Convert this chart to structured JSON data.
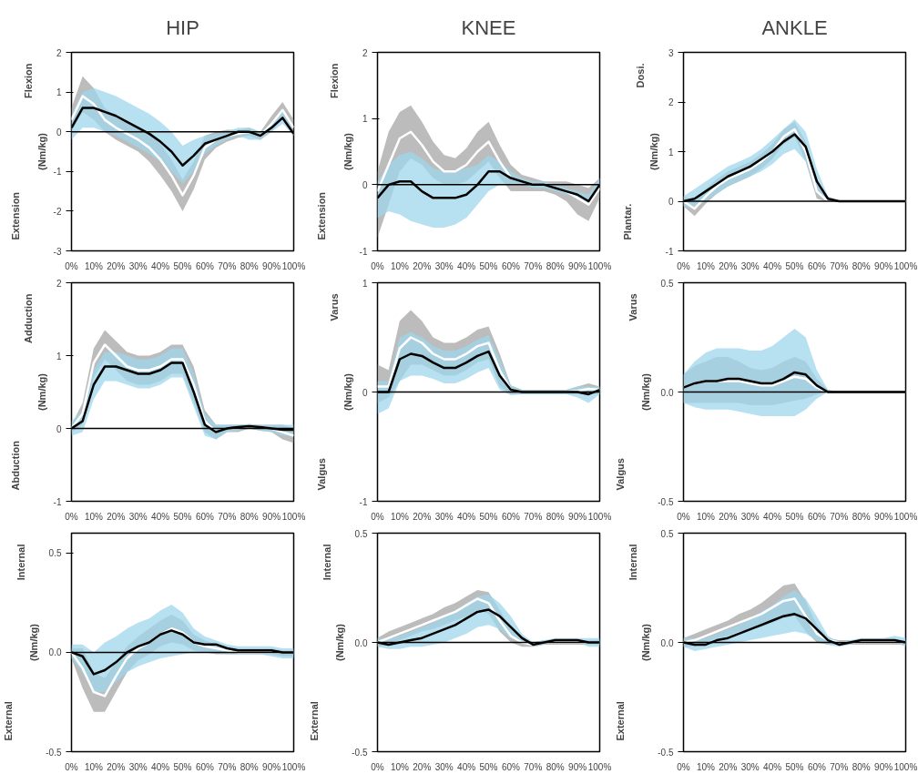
{
  "chart_data": [
    {
      "type": "line",
      "title": "HIP",
      "ylabel": "(Nm/kg)",
      "annotations": [
        "Flexion",
        "Extension"
      ],
      "x": [
        0,
        5,
        10,
        15,
        20,
        25,
        30,
        35,
        40,
        45,
        50,
        55,
        60,
        65,
        70,
        75,
        80,
        85,
        90,
        95,
        100
      ],
      "xlim": [
        0,
        100
      ],
      "xticks": [
        {
          "value": 0,
          "label": "0%"
        },
        {
          "value": 10,
          "label": "10%"
        },
        {
          "value": 20,
          "label": "20%"
        },
        {
          "value": 30,
          "label": "30%"
        },
        {
          "value": 40,
          "label": "40%"
        },
        {
          "value": 50,
          "label": "50%"
        },
        {
          "value": 60,
          "label": "60%"
        },
        {
          "value": 70,
          "label": "70%"
        },
        {
          "value": 80,
          "label": "80%"
        },
        {
          "value": 90,
          "label": "90%"
        },
        {
          "value": 100,
          "label": "100%"
        }
      ],
      "ylim": [
        -3,
        2
      ],
      "yticks": [
        -3,
        -2,
        -1,
        0,
        1,
        2
      ],
      "grid": false,
      "ref_lines": [
        {
          "axis": "y",
          "value": 0
        }
      ],
      "series": [
        {
          "color": "#ffffff",
          "values": [
            0.3,
            0.9,
            0.7,
            0.3,
            0.1,
            -0.05,
            -0.2,
            -0.4,
            -0.7,
            -1.1,
            -1.6,
            -1.1,
            -0.4,
            -0.2,
            -0.1,
            -0.05,
            0,
            -0.1,
            0.2,
            0.55,
            0.1
          ],
          "lower": [
            0,
            0.5,
            0.3,
            0,
            -0.2,
            -0.35,
            -0.5,
            -0.75,
            -1.1,
            -1.5,
            -2,
            -1.45,
            -0.7,
            -0.4,
            -0.25,
            -0.15,
            -0.1,
            -0.2,
            0,
            0.35,
            -0.1
          ],
          "upper": [
            0.6,
            1.4,
            1.1,
            0.6,
            0.4,
            0.25,
            0.1,
            -0.05,
            -0.3,
            -0.7,
            -1.2,
            -0.75,
            -0.1,
            0,
            0.05,
            0.05,
            0.1,
            0,
            0.4,
            0.75,
            0.3
          ]
        },
        {
          "color": "#000000",
          "values": [
            0.1,
            0.6,
            0.6,
            0.5,
            0.4,
            0.25,
            0.1,
            -0.05,
            -0.25,
            -0.5,
            -0.85,
            -0.6,
            -0.3,
            -0.2,
            -0.1,
            0,
            0,
            -0.1,
            0.1,
            0.35,
            -0.05
          ],
          "lower": [
            -0.2,
            0.1,
            0.1,
            0,
            -0.1,
            -0.25,
            -0.4,
            -0.55,
            -0.75,
            -1.0,
            -1.3,
            -1.0,
            -0.55,
            -0.35,
            -0.2,
            -0.1,
            -0.2,
            -0.2,
            0,
            0.2,
            -0.1
          ],
          "upper": [
            0.4,
            1.0,
            1.1,
            1.0,
            0.9,
            0.75,
            0.6,
            0.45,
            0.25,
            0,
            -0.35,
            -0.2,
            -0.1,
            -0.05,
            0,
            0.1,
            0.1,
            0,
            0.2,
            0.5,
            0
          ]
        }
      ]
    },
    {
      "type": "line",
      "title": "KNEE",
      "ylabel": "(Nm/kg)",
      "annotations": [
        "Flexion",
        "Extension"
      ],
      "x": [
        0,
        5,
        10,
        15,
        20,
        25,
        30,
        35,
        40,
        45,
        50,
        55,
        60,
        65,
        70,
        75,
        80,
        85,
        90,
        95,
        100
      ],
      "xlim": [
        0,
        100
      ],
      "xticks": [
        {
          "value": 0,
          "label": "0%"
        },
        {
          "value": 10,
          "label": "10%"
        },
        {
          "value": 20,
          "label": "20%"
        },
        {
          "value": 30,
          "label": "30%"
        },
        {
          "value": 40,
          "label": "40%"
        },
        {
          "value": 50,
          "label": "50%"
        },
        {
          "value": 60,
          "label": "60%"
        },
        {
          "value": 70,
          "label": "70%"
        },
        {
          "value": 80,
          "label": "80%"
        },
        {
          "value": 90,
          "label": "90%"
        },
        {
          "value": 100,
          "label": "100%"
        }
      ],
      "ylim": [
        -1,
        2
      ],
      "yticks": [
        -1,
        0,
        1,
        2
      ],
      "grid": false,
      "ref_lines": [
        {
          "axis": "y",
          "value": 0
        }
      ],
      "series": [
        {
          "color": "#ffffff",
          "values": [
            -0.1,
            0.3,
            0.7,
            0.8,
            0.6,
            0.35,
            0.2,
            0.2,
            0.3,
            0.5,
            0.65,
            0.35,
            0.1,
            0.05,
            0,
            0,
            -0.05,
            -0.1,
            -0.2,
            -0.3,
            -0.05
          ],
          "lower": [
            -0.8,
            -0.3,
            0.2,
            0.4,
            0.3,
            0.1,
            0,
            0,
            0.05,
            0.2,
            0.35,
            0.1,
            -0.1,
            -0.1,
            -0.1,
            -0.1,
            -0.15,
            -0.25,
            -0.45,
            -0.55,
            -0.2
          ],
          "upper": [
            0.2,
            0.8,
            1.1,
            1.2,
            0.95,
            0.65,
            0.45,
            0.4,
            0.55,
            0.8,
            0.95,
            0.6,
            0.3,
            0.15,
            0.1,
            0.05,
            0.05,
            0.05,
            0,
            -0.05,
            0.1
          ]
        },
        {
          "color": "#000000",
          "values": [
            -0.2,
            0,
            0.05,
            0.05,
            -0.1,
            -0.2,
            -0.2,
            -0.2,
            -0.15,
            0,
            0.2,
            0.2,
            0.1,
            0.05,
            0,
            0,
            -0.05,
            -0.1,
            -0.15,
            -0.25,
            0
          ],
          "lower": [
            -0.5,
            -0.4,
            -0.45,
            -0.55,
            -0.6,
            -0.65,
            -0.65,
            -0.6,
            -0.5,
            -0.3,
            -0.1,
            0,
            0,
            0,
            -0.05,
            -0.05,
            -0.1,
            -0.15,
            -0.2,
            -0.3,
            -0.1
          ],
          "upper": [
            0.05,
            0.3,
            0.45,
            0.5,
            0.4,
            0.25,
            0.2,
            0.2,
            0.25,
            0.3,
            0.45,
            0.35,
            0.2,
            0.1,
            0.05,
            0.05,
            0,
            -0.05,
            -0.1,
            -0.15,
            0.1
          ]
        }
      ]
    },
    {
      "type": "line",
      "title": "ANKLE",
      "ylabel": "(Nm/kg)",
      "annotations": [
        "Dosi.",
        "Plantar."
      ],
      "x": [
        0,
        5,
        10,
        15,
        20,
        25,
        30,
        35,
        40,
        45,
        50,
        55,
        60,
        65,
        70,
        75,
        80,
        85,
        90,
        95,
        100
      ],
      "xlim": [
        0,
        100
      ],
      "xticks": [
        {
          "value": 0,
          "label": "0%"
        },
        {
          "value": 10,
          "label": "10%"
        },
        {
          "value": 20,
          "label": "20%"
        },
        {
          "value": 30,
          "label": "30%"
        },
        {
          "value": 40,
          "label": "40%"
        },
        {
          "value": 50,
          "label": "50%"
        },
        {
          "value": 60,
          "label": "60%"
        },
        {
          "value": 70,
          "label": "70%"
        },
        {
          "value": 80,
          "label": "80%"
        },
        {
          "value": 90,
          "label": "90%"
        },
        {
          "value": 100,
          "label": "100%"
        }
      ],
      "ylim": [
        -1,
        3
      ],
      "yticks": [
        -1,
        0,
        1,
        2,
        3
      ],
      "grid": false,
      "ref_lines": [
        {
          "axis": "y",
          "value": 0
        }
      ],
      "series": [
        {
          "color": "#ffffff",
          "values": [
            0,
            -0.15,
            0.1,
            0.3,
            0.45,
            0.55,
            0.65,
            0.8,
            1.0,
            1.3,
            1.45,
            1.0,
            0.2,
            0,
            0,
            0,
            0,
            0,
            0,
            0,
            0
          ],
          "lower": [
            -0.1,
            -0.3,
            -0.05,
            0.15,
            0.3,
            0.4,
            0.5,
            0.65,
            0.85,
            1.15,
            1.3,
            0.8,
            0.05,
            -0.02,
            -0.02,
            -0.02,
            -0.02,
            -0.02,
            -0.02,
            -0.02,
            -0.02
          ],
          "upper": [
            0.1,
            0,
            0.25,
            0.45,
            0.6,
            0.7,
            0.8,
            0.95,
            1.15,
            1.45,
            1.6,
            1.2,
            0.35,
            0.02,
            0.02,
            0.02,
            0.02,
            0.02,
            0.02,
            0.02,
            0.02
          ]
        },
        {
          "color": "#000000",
          "values": [
            0,
            0.05,
            0.2,
            0.35,
            0.5,
            0.6,
            0.7,
            0.85,
            1.0,
            1.2,
            1.35,
            1.1,
            0.4,
            0.05,
            0,
            0,
            0,
            0,
            0,
            0,
            0
          ],
          "lower": [
            -0.1,
            -0.15,
            0,
            0.15,
            0.3,
            0.4,
            0.5,
            0.6,
            0.75,
            0.95,
            1.05,
            0.8,
            0.15,
            0,
            -0.02,
            -0.02,
            -0.02,
            -0.02,
            -0.02,
            -0.02,
            -0.02
          ],
          "upper": [
            0.1,
            0.25,
            0.4,
            0.55,
            0.7,
            0.8,
            0.9,
            1.05,
            1.25,
            1.45,
            1.65,
            1.4,
            0.65,
            0.1,
            0.02,
            0.02,
            0.02,
            0.02,
            0.02,
            0.02,
            0.02
          ]
        }
      ]
    },
    {
      "type": "line",
      "ylabel": "(Nm/kg)",
      "annotations": [
        "Adduction",
        "Abduction"
      ],
      "x": [
        0,
        5,
        10,
        15,
        20,
        25,
        30,
        35,
        40,
        45,
        50,
        55,
        60,
        65,
        70,
        75,
        80,
        85,
        90,
        95,
        100
      ],
      "xlim": [
        0,
        100
      ],
      "xticks": [
        {
          "value": 0,
          "label": "0%"
        },
        {
          "value": 10,
          "label": "10%"
        },
        {
          "value": 20,
          "label": "20%"
        },
        {
          "value": 30,
          "label": "30%"
        },
        {
          "value": 40,
          "label": "40%"
        },
        {
          "value": 50,
          "label": "50%"
        },
        {
          "value": 60,
          "label": "60%"
        },
        {
          "value": 70,
          "label": "70%"
        },
        {
          "value": 80,
          "label": "80%"
        },
        {
          "value": 90,
          "label": "90%"
        },
        {
          "value": 100,
          "label": "100%"
        }
      ],
      "ylim": [
        -1,
        2
      ],
      "yticks": [
        -1,
        0,
        1,
        2
      ],
      "grid": false,
      "ref_lines": [
        {
          "axis": "y",
          "value": 0
        }
      ],
      "series": [
        {
          "color": "#ffffff",
          "values": [
            0,
            0.2,
            0.9,
            1.15,
            1.0,
            0.85,
            0.8,
            0.8,
            0.85,
            0.95,
            0.95,
            0.6,
            0.1,
            -0.05,
            0,
            0,
            0.03,
            0.02,
            0,
            -0.05,
            -0.1
          ],
          "lower": [
            -0.05,
            0.05,
            0.7,
            0.95,
            0.8,
            0.65,
            0.6,
            0.6,
            0.65,
            0.75,
            0.75,
            0.35,
            -0.05,
            -0.15,
            -0.05,
            -0.05,
            0,
            -0.03,
            -0.05,
            -0.15,
            -0.2
          ],
          "upper": [
            0.05,
            0.35,
            1.1,
            1.35,
            1.2,
            1.05,
            1.0,
            1.0,
            1.05,
            1.15,
            1.15,
            0.85,
            0.25,
            0.05,
            0.05,
            0.05,
            0.06,
            0.05,
            0.05,
            0.05,
            0
          ]
        },
        {
          "color": "#000000",
          "values": [
            0,
            0.1,
            0.6,
            0.85,
            0.85,
            0.8,
            0.75,
            0.75,
            0.8,
            0.9,
            0.9,
            0.5,
            0.05,
            -0.05,
            0,
            0.02,
            0.03,
            0.02,
            0,
            -0.02,
            -0.02
          ],
          "lower": [
            -0.1,
            -0.05,
            0.4,
            0.65,
            0.65,
            0.6,
            0.55,
            0.55,
            0.6,
            0.7,
            0.7,
            0.3,
            -0.1,
            -0.15,
            -0.05,
            -0.03,
            0,
            -0.03,
            -0.05,
            -0.1,
            -0.1
          ],
          "upper": [
            0.1,
            0.25,
            0.8,
            1.05,
            1.05,
            1.0,
            0.95,
            0.95,
            1.0,
            1.1,
            1.1,
            0.75,
            0.2,
            0.05,
            0.05,
            0.05,
            0.06,
            0.05,
            0.05,
            0.05,
            0.05
          ]
        }
      ]
    },
    {
      "type": "line",
      "ylabel": "(Nm/kg)",
      "annotations": [
        "Varus",
        "Valgus"
      ],
      "x": [
        0,
        5,
        10,
        15,
        20,
        25,
        30,
        35,
        40,
        45,
        50,
        55,
        60,
        65,
        70,
        75,
        80,
        85,
        90,
        95,
        100
      ],
      "xlim": [
        0,
        100
      ],
      "xticks": [
        {
          "value": 0,
          "label": "0%"
        },
        {
          "value": 10,
          "label": "10%"
        },
        {
          "value": 20,
          "label": "20%"
        },
        {
          "value": 30,
          "label": "30%"
        },
        {
          "value": 40,
          "label": "40%"
        },
        {
          "value": 50,
          "label": "50%"
        },
        {
          "value": 60,
          "label": "60%"
        },
        {
          "value": 70,
          "label": "70%"
        },
        {
          "value": 80,
          "label": "80%"
        },
        {
          "value": 90,
          "label": "90%"
        },
        {
          "value": 100,
          "label": "100%"
        }
      ],
      "ylim": [
        -1,
        1
      ],
      "yticks": [
        -1,
        0,
        1
      ],
      "grid": false,
      "ref_lines": [
        {
          "axis": "y",
          "value": 0
        }
      ],
      "series": [
        {
          "color": "#ffffff",
          "values": [
            0.05,
            0.05,
            0.4,
            0.5,
            0.45,
            0.35,
            0.3,
            0.3,
            0.35,
            0.42,
            0.45,
            0.2,
            0.02,
            0,
            0,
            0,
            0,
            0,
            0.01,
            0.03,
            0.02
          ],
          "lower": [
            -0.1,
            -0.05,
            0.1,
            0.25,
            0.25,
            0.2,
            0.15,
            0.15,
            0.2,
            0.27,
            0.3,
            0.05,
            -0.02,
            -0.02,
            -0.02,
            -0.02,
            -0.02,
            -0.02,
            -0.02,
            -0.02,
            -0.02
          ],
          "upper": [
            0.25,
            0.2,
            0.65,
            0.75,
            0.65,
            0.5,
            0.45,
            0.45,
            0.5,
            0.57,
            0.6,
            0.35,
            0.06,
            0.02,
            0.02,
            0.02,
            0.02,
            0.02,
            0.05,
            0.08,
            0.05
          ]
        },
        {
          "color": "#000000",
          "values": [
            0,
            0,
            0.3,
            0.35,
            0.33,
            0.27,
            0.22,
            0.22,
            0.27,
            0.33,
            0.37,
            0.15,
            0.02,
            0,
            0,
            0,
            0,
            0,
            0,
            -0.02,
            0.02
          ],
          "lower": [
            -0.2,
            -0.15,
            0.1,
            0.15,
            0.15,
            0.12,
            0.08,
            0.08,
            0.12,
            0.18,
            0.22,
            0.02,
            -0.03,
            -0.02,
            -0.02,
            -0.02,
            -0.02,
            -0.02,
            -0.05,
            -0.1,
            -0.02
          ],
          "upper": [
            0.1,
            0.1,
            0.5,
            0.55,
            0.5,
            0.42,
            0.38,
            0.38,
            0.42,
            0.48,
            0.52,
            0.3,
            0.06,
            0.02,
            0.02,
            0.02,
            0.02,
            0.02,
            0.05,
            0.05,
            0.05
          ]
        }
      ]
    },
    {
      "type": "line",
      "ylabel": "(Nm/kg)",
      "annotations": [
        "Varus",
        "Valgus"
      ],
      "x": [
        0,
        5,
        10,
        15,
        20,
        25,
        30,
        35,
        40,
        45,
        50,
        55,
        60,
        65,
        70,
        75,
        80,
        85,
        90,
        95,
        100
      ],
      "xlim": [
        0,
        100
      ],
      "xticks": [
        {
          "value": 0,
          "label": "0%"
        },
        {
          "value": 10,
          "label": "10%"
        },
        {
          "value": 20,
          "label": "20%"
        },
        {
          "value": 30,
          "label": "30%"
        },
        {
          "value": 40,
          "label": "40%"
        },
        {
          "value": 50,
          "label": "50%"
        },
        {
          "value": 60,
          "label": "60%"
        },
        {
          "value": 70,
          "label": "70%"
        },
        {
          "value": 80,
          "label": "80%"
        },
        {
          "value": 90,
          "label": "90%"
        },
        {
          "value": 100,
          "label": "100%"
        }
      ],
      "ylim": [
        -0.5,
        0.5
      ],
      "yticks": [
        {
          "value": -0.5,
          "label": "-0.5"
        },
        {
          "value": 0,
          "label": "0.0"
        },
        {
          "value": 0.5,
          "label": "0.5"
        }
      ],
      "grid": false,
      "ref_lines": [
        {
          "axis": "y",
          "value": 0
        }
      ],
      "series": [
        {
          "color": "#ffffff",
          "values": [
            0.02,
            0.04,
            0.05,
            0.05,
            0.05,
            0.05,
            0.04,
            0.03,
            0.03,
            0.05,
            0.07,
            0.06,
            0.02,
            0,
            0,
            0,
            0,
            0,
            0,
            0,
            0
          ],
          "lower": [
            -0.05,
            -0.05,
            -0.05,
            -0.05,
            -0.05,
            -0.05,
            -0.06,
            -0.06,
            -0.06,
            -0.05,
            -0.04,
            -0.03,
            -0.01,
            0,
            0,
            0,
            0,
            0,
            0,
            0,
            0
          ],
          "upper": [
            0.08,
            0.12,
            0.14,
            0.16,
            0.16,
            0.14,
            0.11,
            0.1,
            0.11,
            0.14,
            0.16,
            0.14,
            0.06,
            0.01,
            0,
            0,
            0,
            0,
            0,
            0,
            0
          ]
        },
        {
          "color": "#000000",
          "values": [
            0.02,
            0.04,
            0.05,
            0.05,
            0.06,
            0.06,
            0.05,
            0.04,
            0.04,
            0.06,
            0.09,
            0.08,
            0.03,
            0,
            0,
            0,
            0,
            0,
            0,
            0,
            0
          ],
          "lower": [
            -0.05,
            -0.07,
            -0.08,
            -0.08,
            -0.08,
            -0.09,
            -0.1,
            -0.11,
            -0.11,
            -0.11,
            -0.11,
            -0.08,
            -0.03,
            0,
            0,
            0,
            0,
            0,
            0,
            0,
            0
          ],
          "upper": [
            0.08,
            0.14,
            0.18,
            0.2,
            0.2,
            0.2,
            0.19,
            0.19,
            0.21,
            0.25,
            0.29,
            0.25,
            0.1,
            0.01,
            0,
            0,
            0,
            0,
            0,
            0,
            0
          ]
        }
      ]
    },
    {
      "type": "line",
      "ylabel": "(Nm/kg)",
      "annotations": [
        "Internal",
        "External"
      ],
      "x": [
        0,
        5,
        10,
        15,
        20,
        25,
        30,
        35,
        40,
        45,
        50,
        55,
        60,
        65,
        70,
        75,
        80,
        85,
        90,
        95,
        100
      ],
      "xlim": [
        0,
        100
      ],
      "xticks": [
        {
          "value": 0,
          "label": "0%"
        },
        {
          "value": 10,
          "label": "10%"
        },
        {
          "value": 20,
          "label": "20%"
        },
        {
          "value": 30,
          "label": "30%"
        },
        {
          "value": 40,
          "label": "40%"
        },
        {
          "value": 50,
          "label": "50%"
        },
        {
          "value": 60,
          "label": "60%"
        },
        {
          "value": 70,
          "label": "70%"
        },
        {
          "value": 80,
          "label": "80%"
        },
        {
          "value": 90,
          "label": "90%"
        },
        {
          "value": 100,
          "label": "100%"
        }
      ],
      "ylim": [
        -0.5,
        0.6
      ],
      "yticks": [
        {
          "value": -0.5,
          "label": "-0.5"
        },
        {
          "value": 0,
          "label": "0.0"
        },
        {
          "value": 0.5,
          "label": "0.5"
        }
      ],
      "grid": false,
      "ref_lines": [
        {
          "axis": "y",
          "value": 0
        }
      ],
      "series": [
        {
          "color": "#ffffff",
          "values": [
            0,
            -0.08,
            -0.2,
            -0.22,
            -0.12,
            -0.03,
            0.02,
            0.05,
            0.09,
            0.12,
            0.1,
            0.05,
            0.03,
            0.02,
            0.01,
            0,
            0,
            0,
            0,
            0,
            0
          ],
          "lower": [
            -0.03,
            -0.18,
            -0.3,
            -0.3,
            -0.2,
            -0.1,
            -0.04,
            -0.01,
            0.03,
            0.05,
            0.04,
            0.01,
            0,
            -0.01,
            -0.01,
            -0.01,
            -0.01,
            -0.01,
            -0.01,
            -0.02,
            -0.02
          ],
          "upper": [
            0.02,
            0.02,
            -0.1,
            -0.13,
            -0.05,
            0.03,
            0.08,
            0.12,
            0.16,
            0.19,
            0.16,
            0.09,
            0.06,
            0.04,
            0.03,
            0.02,
            0.02,
            0.02,
            0.02,
            0.01,
            0.01
          ]
        },
        {
          "color": "#000000",
          "values": [
            0,
            -0.02,
            -0.11,
            -0.09,
            -0.05,
            0,
            0.03,
            0.05,
            0.09,
            0.11,
            0.09,
            0.05,
            0.04,
            0.04,
            0.02,
            0.01,
            0.01,
            0.01,
            0.01,
            0,
            0
          ],
          "lower": [
            -0.03,
            -0.1,
            -0.2,
            -0.2,
            -0.15,
            -0.1,
            -0.07,
            -0.05,
            -0.03,
            -0.02,
            -0.01,
            0,
            0,
            0,
            -0.01,
            -0.01,
            -0.01,
            -0.01,
            -0.02,
            -0.03,
            -0.03
          ],
          "upper": [
            0.04,
            0.04,
            0,
            0.05,
            0.08,
            0.12,
            0.15,
            0.17,
            0.21,
            0.24,
            0.2,
            0.12,
            0.08,
            0.06,
            0.04,
            0.03,
            0.03,
            0.03,
            0.03,
            0.02,
            0.02
          ]
        }
      ]
    },
    {
      "type": "line",
      "ylabel": "(Nm/kg)",
      "annotations": [
        "Internal",
        "External"
      ],
      "x": [
        0,
        5,
        10,
        15,
        20,
        25,
        30,
        35,
        40,
        45,
        50,
        55,
        60,
        65,
        70,
        75,
        80,
        85,
        90,
        95,
        100
      ],
      "xlim": [
        0,
        100
      ],
      "xticks": [
        {
          "value": 0,
          "label": "0%"
        },
        {
          "value": 10,
          "label": "10%"
        },
        {
          "value": 20,
          "label": "20%"
        },
        {
          "value": 30,
          "label": "30%"
        },
        {
          "value": 40,
          "label": "40%"
        },
        {
          "value": 50,
          "label": "50%"
        },
        {
          "value": 60,
          "label": "60%"
        },
        {
          "value": 70,
          "label": "70%"
        },
        {
          "value": 80,
          "label": "80%"
        },
        {
          "value": 90,
          "label": "90%"
        },
        {
          "value": 100,
          "label": "100%"
        }
      ],
      "ylim": [
        -0.5,
        0.5
      ],
      "yticks": [
        {
          "value": -0.5,
          "label": "-0.5"
        },
        {
          "value": 0,
          "label": "0.0"
        },
        {
          "value": 0.5,
          "label": "0.5"
        }
      ],
      "grid": false,
      "ref_lines": [
        {
          "axis": "y",
          "value": 0
        }
      ],
      "series": [
        {
          "color": "#ffffff",
          "values": [
            0,
            0.02,
            0.04,
            0.06,
            0.08,
            0.1,
            0.12,
            0.14,
            0.17,
            0.2,
            0.18,
            0.1,
            0.03,
            0,
            -0.01,
            0,
            0,
            0,
            0,
            0,
            0
          ],
          "lower": [
            -0.02,
            -0.01,
            0.01,
            0.03,
            0.05,
            0.06,
            0.08,
            0.1,
            0.12,
            0.15,
            0.13,
            0.05,
            0,
            -0.02,
            -0.02,
            -0.01,
            -0.01,
            -0.01,
            -0.01,
            -0.01,
            -0.01
          ],
          "upper": [
            0.02,
            0.05,
            0.07,
            0.09,
            0.11,
            0.13,
            0.16,
            0.18,
            0.21,
            0.24,
            0.23,
            0.15,
            0.06,
            0.02,
            0,
            0.01,
            0.01,
            0.01,
            0.01,
            0.01,
            0.01
          ]
        },
        {
          "color": "#000000",
          "values": [
            0,
            -0.01,
            0,
            0.01,
            0.02,
            0.04,
            0.06,
            0.08,
            0.11,
            0.14,
            0.15,
            0.12,
            0.07,
            0.02,
            -0.01,
            0,
            0.01,
            0.01,
            0.01,
            0,
            0
          ],
          "lower": [
            -0.02,
            -0.03,
            -0.03,
            -0.02,
            -0.02,
            -0.01,
            0,
            0.02,
            0.04,
            0.07,
            0.08,
            0.06,
            0.02,
            0,
            -0.02,
            -0.01,
            0,
            0,
            0,
            -0.02,
            -0.02
          ],
          "upper": [
            0.02,
            0.02,
            0.03,
            0.05,
            0.07,
            0.09,
            0.12,
            0.14,
            0.18,
            0.21,
            0.22,
            0.18,
            0.12,
            0.04,
            0,
            0.01,
            0.02,
            0.02,
            0.02,
            0.02,
            0.02
          ]
        }
      ]
    },
    {
      "type": "line",
      "ylabel": "(Nm/kg)",
      "annotations": [
        "Internal",
        "External"
      ],
      "x": [
        0,
        5,
        10,
        15,
        20,
        25,
        30,
        35,
        40,
        45,
        50,
        55,
        60,
        65,
        70,
        75,
        80,
        85,
        90,
        95,
        100
      ],
      "xlim": [
        0,
        100
      ],
      "xticks": [
        {
          "value": 0,
          "label": "0%"
        },
        {
          "value": 10,
          "label": "10%"
        },
        {
          "value": 20,
          "label": "20%"
        },
        {
          "value": 30,
          "label": "30%"
        },
        {
          "value": 40,
          "label": "40%"
        },
        {
          "value": 50,
          "label": "50%"
        },
        {
          "value": 60,
          "label": "60%"
        },
        {
          "value": 70,
          "label": "70%"
        },
        {
          "value": 80,
          "label": "80%"
        },
        {
          "value": 90,
          "label": "90%"
        },
        {
          "value": 100,
          "label": "100%"
        }
      ],
      "ylim": [
        -0.5,
        0.5
      ],
      "yticks": [
        {
          "value": -0.5,
          "label": "-0.5"
        },
        {
          "value": 0,
          "label": "0.0"
        },
        {
          "value": 0.5,
          "label": "0.5"
        }
      ],
      "grid": false,
      "ref_lines": [
        {
          "axis": "y",
          "value": 0
        }
      ],
      "series": [
        {
          "color": "#ffffff",
          "values": [
            0,
            0.01,
            0.03,
            0.05,
            0.07,
            0.09,
            0.11,
            0.13,
            0.16,
            0.19,
            0.2,
            0.12,
            0.04,
            0.01,
            0,
            0,
            0,
            0,
            0,
            0,
            0
          ],
          "lower": [
            -0.02,
            -0.02,
            0,
            0.02,
            0.03,
            0.05,
            0.06,
            0.07,
            0.09,
            0.11,
            0.12,
            0.05,
            0,
            -0.01,
            -0.01,
            -0.01,
            -0.01,
            -0.01,
            -0.01,
            -0.01,
            -0.01
          ],
          "upper": [
            0.02,
            0.04,
            0.06,
            0.08,
            0.1,
            0.13,
            0.15,
            0.18,
            0.22,
            0.26,
            0.27,
            0.19,
            0.08,
            0.02,
            0.01,
            0.01,
            0.01,
            0.01,
            0.01,
            0.01,
            0.01
          ]
        },
        {
          "color": "#000000",
          "values": [
            0,
            -0.01,
            -0.01,
            0.01,
            0.02,
            0.04,
            0.06,
            0.08,
            0.1,
            0.12,
            0.13,
            0.11,
            0.06,
            0.01,
            -0.01,
            0,
            0.01,
            0.01,
            0.01,
            0.01,
            0
          ],
          "lower": [
            -0.02,
            -0.04,
            -0.03,
            -0.02,
            -0.01,
            0,
            0.01,
            0.02,
            0.03,
            0.04,
            0.05,
            0.04,
            0.01,
            -0.01,
            -0.02,
            -0.01,
            0,
            0,
            0,
            0,
            -0.02
          ],
          "upper": [
            0.02,
            0.02,
            0.02,
            0.04,
            0.06,
            0.08,
            0.11,
            0.14,
            0.17,
            0.21,
            0.24,
            0.2,
            0.12,
            0.03,
            0,
            0.01,
            0.02,
            0.02,
            0.02,
            0.03,
            0.02
          ]
        }
      ]
    }
  ]
}
